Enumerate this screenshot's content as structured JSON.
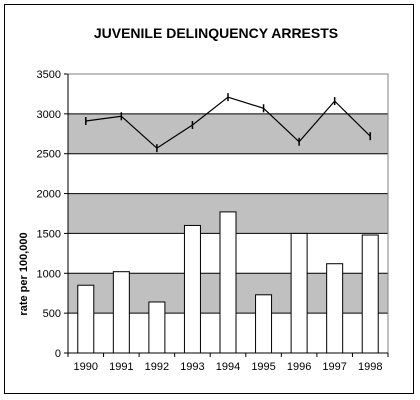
{
  "chart_data": {
    "type": "bar",
    "title": "JUVENILE DELINQUENCY ARRESTS",
    "ylabel": "rate per 100,000",
    "xlabel": "",
    "categories": [
      "1990",
      "1991",
      "1992",
      "1993",
      "1994",
      "1995",
      "1996",
      "1997",
      "1998"
    ],
    "series": [
      {
        "kind": "bar",
        "values": [
          850,
          1020,
          640,
          1600,
          1770,
          730,
          1500,
          1120,
          1480
        ]
      },
      {
        "kind": "line",
        "values": [
          2910,
          2970,
          2570,
          2860,
          3210,
          3070,
          2650,
          3160,
          2720
        ]
      }
    ],
    "ylim": [
      0,
      3500
    ],
    "yticks": [
      "0",
      "500",
      "1000",
      "1500",
      "2000",
      "2500",
      "3000",
      "3500"
    ],
    "grid": true,
    "colors": {
      "bar_fill": "#ffffff",
      "plot_band_dark": "#c0c0c0",
      "plot_band_light": "#ffffff",
      "line": "#000000"
    }
  }
}
